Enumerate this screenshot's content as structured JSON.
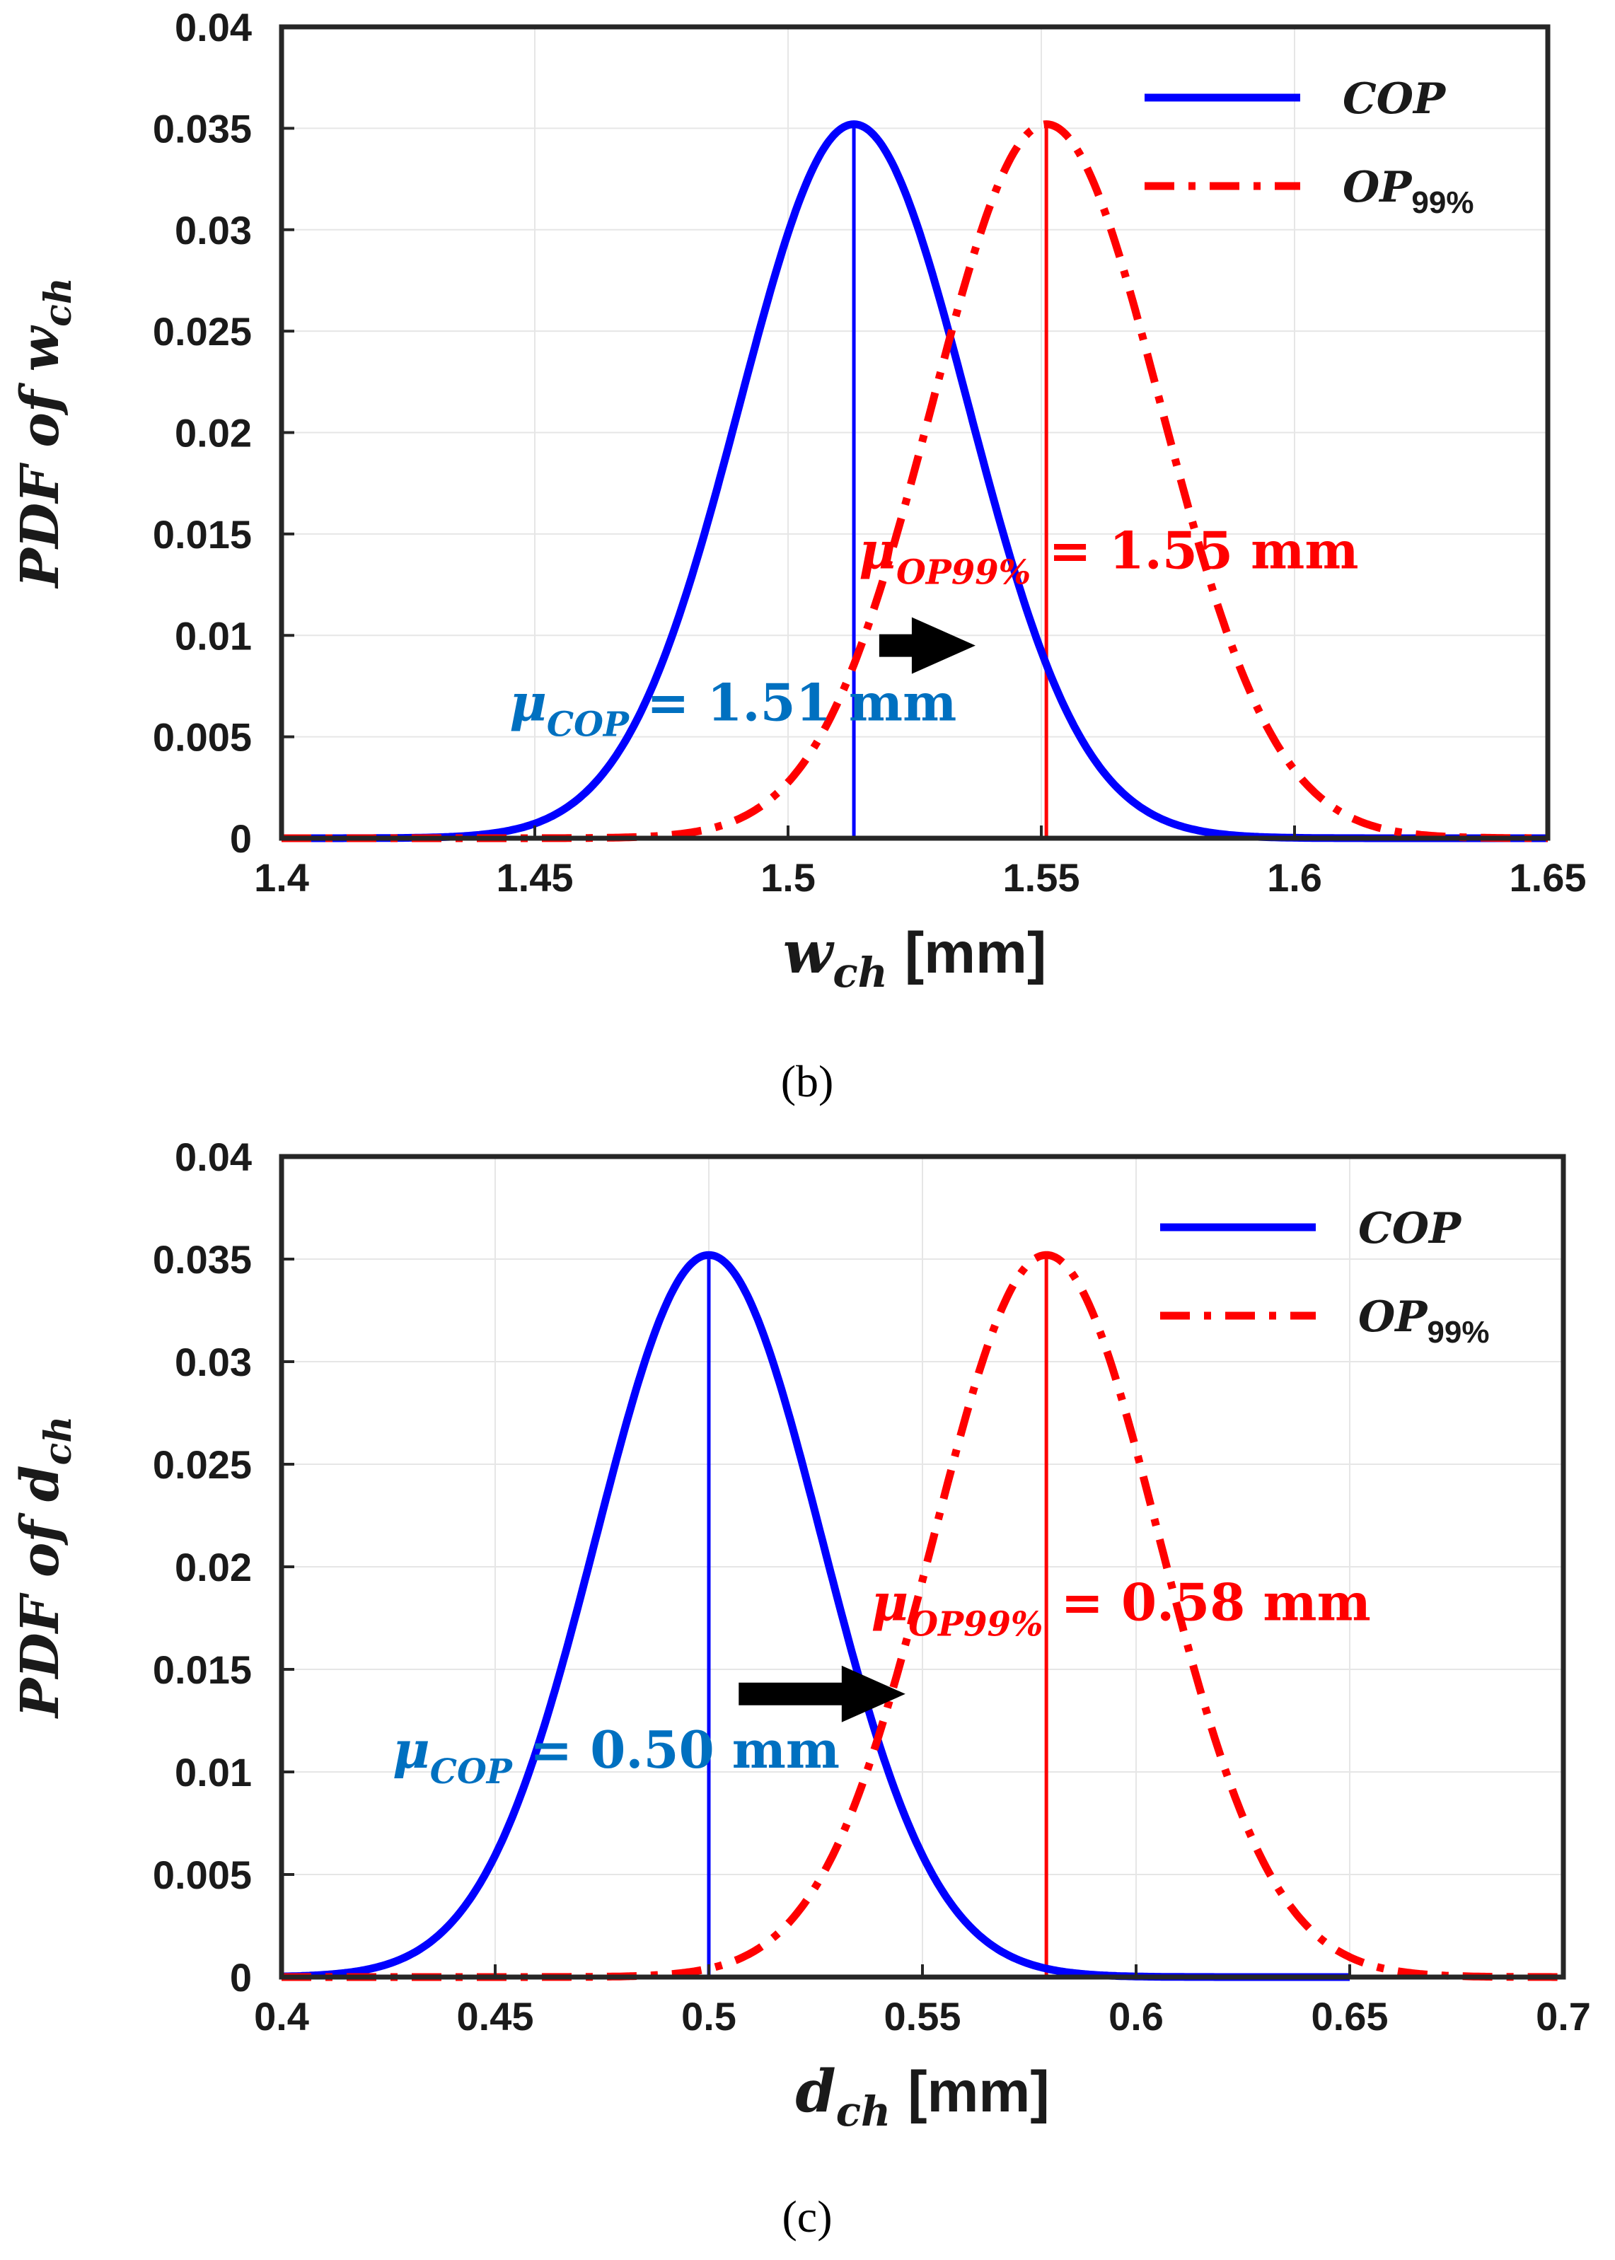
{
  "colors": {
    "cop": "#0000ff",
    "op99": "#ff0000",
    "annot_cop": "#0070c0",
    "annot_op99": "#ff0000",
    "arrow": "#000000",
    "grid": "#e6e6e6",
    "axis": "#262626"
  },
  "chart_data": [
    {
      "type": "line",
      "panel": "b",
      "caption": "(b)",
      "ylabel": {
        "main": "PDF of w",
        "sub": "ch"
      },
      "xlabel": {
        "var": "w",
        "sub": "ch",
        "unit": "[mm]"
      },
      "xlim": [
        1.4,
        1.65
      ],
      "ylim": [
        0,
        0.04
      ],
      "xticks": [
        "1.4",
        "1.45",
        "1.5",
        "1.55",
        "1.6",
        "1.65"
      ],
      "yticks": [
        "0",
        "0.005",
        "0.01",
        "0.015",
        "0.02",
        "0.025",
        "0.03",
        "0.035",
        "0.04"
      ],
      "grid": true,
      "legend_position": "top-right",
      "series": [
        {
          "name": "COP",
          "legend_main": "COP",
          "legend_sub": "",
          "style": "solid",
          "mean": 1.513,
          "sigma": 0.0226,
          "peak": 0.0352
        },
        {
          "name": "OP99%",
          "legend_main": "OP",
          "legend_sub": "99%",
          "style": "dashdot",
          "mean": 1.551,
          "sigma": 0.0226,
          "peak": 0.0352
        }
      ],
      "annotations": [
        {
          "target": "COP",
          "greek": "μ",
          "sub": "COP",
          "text": " = 1.51 mm",
          "x": 1.445,
          "y": 0.0058
        },
        {
          "target": "OP99%",
          "greek": "μ",
          "sub": "OP99%",
          "text": " = 1.55 mm",
          "x": 1.514,
          "y": 0.0133
        }
      ],
      "arrow": {
        "x1": 1.518,
        "x2": 1.537,
        "y": 0.0095
      }
    },
    {
      "type": "line",
      "panel": "c",
      "caption": "(c)",
      "ylabel": {
        "main": "PDF of d",
        "sub": "ch"
      },
      "xlabel": {
        "var": "d",
        "sub": "ch",
        "unit": "[mm]"
      },
      "xlim": [
        0.4,
        0.7
      ],
      "ylim": [
        0,
        0.04
      ],
      "xticks": [
        "0.4",
        "0.45",
        "0.5",
        "0.55",
        "0.6",
        "0.65",
        "0.7"
      ],
      "yticks": [
        "0",
        "0.005",
        "0.01",
        "0.015",
        "0.02",
        "0.025",
        "0.03",
        "0.035",
        "0.04"
      ],
      "grid": true,
      "legend_position": "top-right",
      "series": [
        {
          "name": "COP",
          "legend_main": "COP",
          "legend_sub": "",
          "style": "solid",
          "mean": 0.5,
          "sigma": 0.0265,
          "peak": 0.0352,
          "xmax": 0.65
        },
        {
          "name": "OP99%",
          "legend_main": "OP",
          "legend_sub": "99%",
          "style": "dashdot",
          "mean": 0.579,
          "sigma": 0.0265,
          "peak": 0.0352
        }
      ],
      "annotations": [
        {
          "target": "COP",
          "greek": "μ",
          "sub": "COP",
          "text": " = 0.50 mm",
          "x": 0.426,
          "y": 0.0102
        },
        {
          "target": "OP99%",
          "greek": "μ",
          "sub": "OP99%",
          "text": " = 0.58 mm",
          "x": 0.538,
          "y": 0.0174
        }
      ],
      "arrow": {
        "x1": 0.507,
        "x2": 0.546,
        "y": 0.0138
      }
    }
  ]
}
